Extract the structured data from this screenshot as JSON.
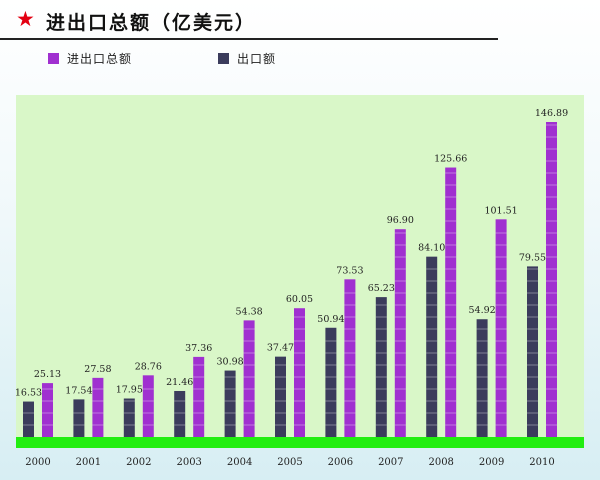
{
  "header": {
    "title": "进出口总额（亿美元）",
    "star_icon": "star-icon"
  },
  "colors": {
    "accent_star": "#e30012",
    "plot_background": "#d9f7c8",
    "baseline": "#22ee11",
    "series_total": "#a030d0",
    "series_export": "#3b3c5c"
  },
  "chart_data": {
    "type": "bar",
    "title": "进出口总额（亿美元）",
    "xlabel": "",
    "ylabel": "",
    "ylim": [
      0,
      150
    ],
    "grid": false,
    "legend_placement": "top-left",
    "categories": [
      "2000",
      "2001",
      "2002",
      "2003",
      "2004",
      "2005",
      "2006",
      "2007",
      "2008",
      "2009",
      "2010"
    ],
    "series": [
      {
        "name": "出口额",
        "color": "#3b3c5c",
        "values": [
          16.53,
          17.54,
          17.95,
          21.46,
          30.98,
          37.47,
          50.94,
          65.23,
          84.1,
          54.92,
          79.55
        ],
        "labels": [
          "16.53",
          "17.54",
          "17.95",
          "21.46",
          "30.98",
          "37.47",
          "50.94",
          "65.23",
          "84.10",
          "54.92",
          "79.55"
        ]
      },
      {
        "name": "进出口总额",
        "color": "#a030d0",
        "values": [
          25.13,
          27.58,
          28.76,
          37.36,
          54.38,
          60.05,
          73.53,
          96.9,
          125.66,
          101.51,
          146.89
        ],
        "labels": [
          "25.13",
          "27.58",
          "28.76",
          "37.36",
          "54.38",
          "60.05",
          "73.53",
          "96.90",
          "125.66",
          "101.51",
          "146.89"
        ]
      }
    ]
  }
}
